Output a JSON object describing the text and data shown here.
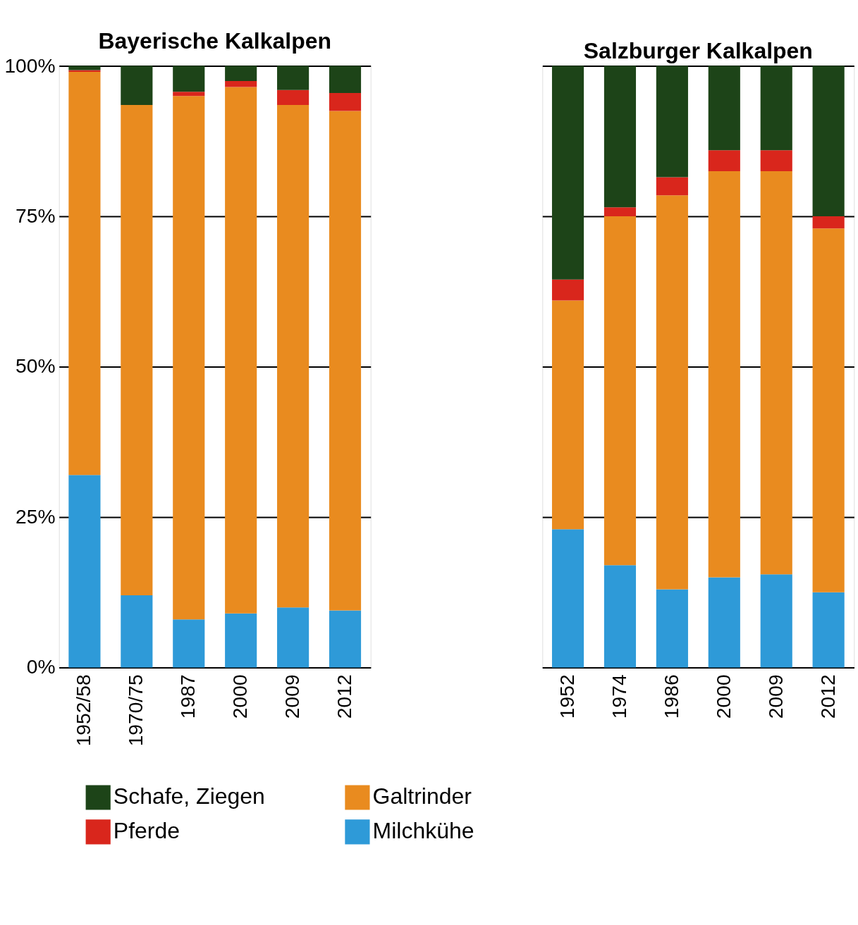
{
  "chart_data": [
    {
      "type": "bar",
      "title": "Bayerische Kalkalpen",
      "stacked": true,
      "categories": [
        "1952/58",
        "1970/75",
        "1987",
        "2000",
        "2009",
        "2012"
      ],
      "series": [
        {
          "name": "Milchkühe",
          "color": "#2e9ad8",
          "values": [
            32,
            12,
            8,
            9,
            10,
            9.5
          ]
        },
        {
          "name": "Galtrinder",
          "color": "#e98b1f",
          "values": [
            67,
            81.5,
            87,
            87.5,
            83.5,
            83
          ]
        },
        {
          "name": "Pferde",
          "color": "#d9261c",
          "values": [
            0.3,
            0,
            0.7,
            1,
            2.5,
            3
          ]
        },
        {
          "name": "Schafe, Ziegen",
          "color": "#1d4418",
          "values": [
            0.7,
            6.5,
            4.3,
            2.5,
            4,
            4.5
          ]
        }
      ],
      "ylim": [
        0,
        100
      ],
      "yticks": [
        {
          "value": 0,
          "label": "0%"
        },
        {
          "value": 25,
          "label": "25%"
        },
        {
          "value": 50,
          "label": "50%"
        },
        {
          "value": 75,
          "label": "75%"
        },
        {
          "value": 100,
          "label": "100%"
        }
      ],
      "grid": "y",
      "legend": "bottom"
    },
    {
      "type": "bar",
      "title": "Salzburger Kalkalpen",
      "stacked": true,
      "categories": [
        "1952",
        "1974",
        "1986",
        "2000",
        "2009",
        "2012"
      ],
      "series": [
        {
          "color": "#2e9ad8",
          "values": [
            23,
            17,
            13,
            15,
            15.5,
            12.5
          ]
        },
        {
          "color": "#e98b1f",
          "values": [
            38,
            58,
            65.5,
            67.5,
            67,
            60.5
          ]
        },
        {
          "color": "#d9261c",
          "values": [
            3.5,
            1.5,
            3,
            3.5,
            3.5,
            2
          ]
        },
        {
          "color": "#1d4418",
          "values": [
            35.5,
            23.5,
            18.5,
            14,
            14,
            25
          ]
        }
      ],
      "ylim": [
        0,
        100
      ],
      "yticks": [
        {
          "value": 0,
          "label": null
        },
        {
          "value": 25,
          "label": null
        },
        {
          "value": 50,
          "label": null
        },
        {
          "value": 75,
          "label": null
        },
        {
          "value": 100,
          "label": null
        }
      ],
      "grid": "y",
      "tick_labels": "x"
    }
  ]
}
